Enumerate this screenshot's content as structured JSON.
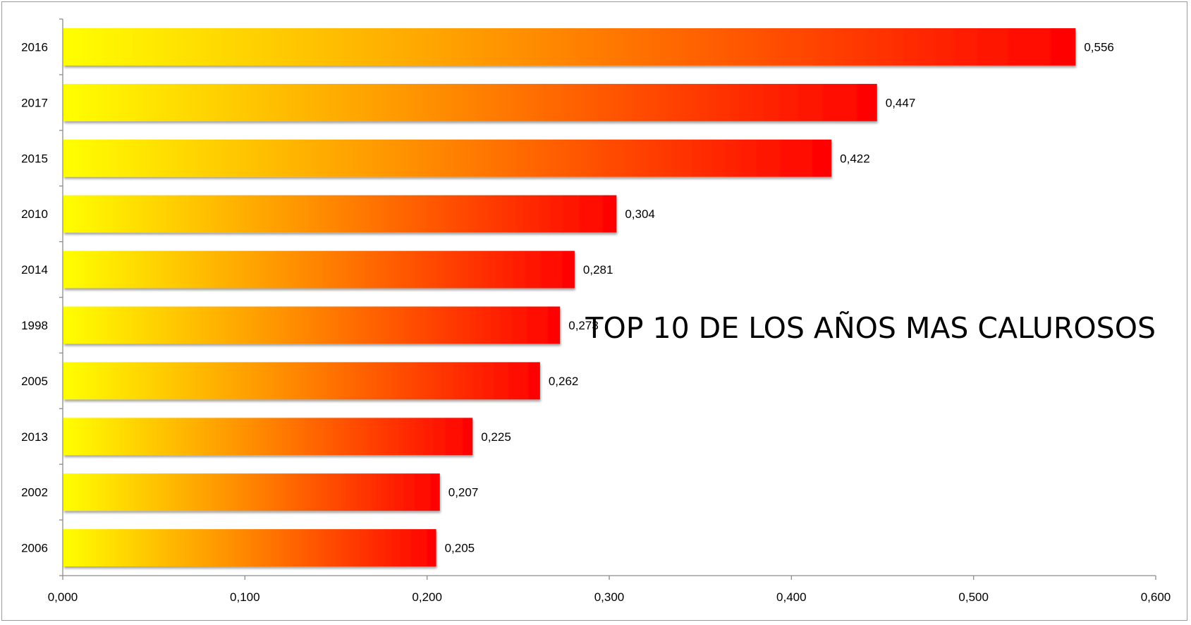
{
  "chart_data": {
    "type": "bar",
    "orientation": "horizontal",
    "title": "TOP 10 DE LOS AÑOS MAS CALUROSOS",
    "categories": [
      "2016",
      "2017",
      "2015",
      "2010",
      "2014",
      "1998",
      "2005",
      "2013",
      "2002",
      "2006"
    ],
    "values": [
      0.556,
      0.447,
      0.422,
      0.304,
      0.281,
      0.273,
      0.262,
      0.225,
      0.207,
      0.205
    ],
    "value_labels": [
      "0,556",
      "0,447",
      "0,422",
      "0,304",
      "0,281",
      "0,273",
      "0,262",
      "0,225",
      "0,207",
      "0,205"
    ],
    "xticks": [
      0,
      0.1,
      0.2,
      0.3,
      0.4,
      0.5,
      0.6
    ],
    "xtick_labels": [
      "0,000",
      "0,100",
      "0,200",
      "0,300",
      "0,400",
      "0,500",
      "0,600"
    ],
    "xlim": [
      0,
      0.6
    ],
    "xlabel": "",
    "ylabel": "",
    "grid": false,
    "legend": "none",
    "colors": {
      "bar_gradient_start": "#ffff00",
      "bar_gradient_mid": "#ff9000",
      "bar_gradient_end": "#ff0000",
      "axis": "#8c8c8c"
    }
  }
}
